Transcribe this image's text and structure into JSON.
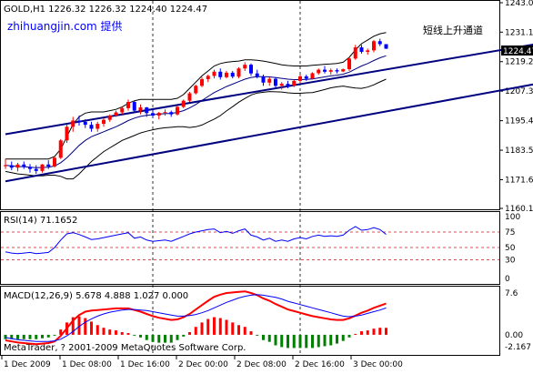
{
  "header": {
    "ohlc_label": "GOLD,H1  1226.32  1226.32  1224.40  1224.47",
    "watermark": "zhihuangjin.com 提供",
    "annotation": "短线上升通道",
    "current_price": "1224.47"
  },
  "colors": {
    "background": "#ffffff",
    "axes": "#000000",
    "bull_candle": "#ff0000",
    "bear_candle": "#0000ff",
    "channel": "#000080",
    "ma": "#000080",
    "bands": "#000000",
    "rsi": "#0000ff",
    "rsi_levels": "#ff0000",
    "macd_line": "#ff0000",
    "signal_line": "#0000ff",
    "hist_pos": "#ff0000",
    "hist_neg": "#008000",
    "watermark": "#0000ff",
    "price_box": "#000000"
  },
  "price_panel": {
    "ticks": [
      "1243.00",
      "1231.15",
      "1219.25",
      "1207.35",
      "1195.45",
      "1183.55",
      "1171.65",
      "1160.10"
    ]
  },
  "rsi_panel": {
    "label": "RSI(14) 71.1652",
    "ticks": [
      "100",
      "75",
      "50",
      "30",
      "0"
    ]
  },
  "macd_panel": {
    "label": "MACD(12,26,9) 5.678 4.888 1.027 0.000",
    "ticks": [
      "7.6",
      "0.00",
      "-2.167"
    ],
    "copyright": "MetaTrader, ? 2001-2009 MetaQuotes Software Corp."
  },
  "x_axis": {
    "labels": [
      "1 Dec 2009",
      "1 Dec 08:00",
      "1 Dec 16:00",
      "2 Dec 00:00",
      "2 Dec 08:00",
      "2 Dec 16:00",
      "3 Dec 00:00"
    ]
  },
  "chart_data": {
    "type": "candlestick",
    "title": "GOLD,H1",
    "x_unit": "hour",
    "x_start": "1 Dec 2009 00:00",
    "candles": [
      [
        1177.5,
        1180,
        1176,
        1177.5
      ],
      [
        1177.5,
        1179,
        1175.5,
        1176.5
      ],
      [
        1176.5,
        1178.5,
        1175,
        1177.8
      ],
      [
        1177.8,
        1179,
        1176,
        1176.8
      ],
      [
        1176.8,
        1178,
        1174.5,
        1176
      ],
      [
        1176,
        1177.5,
        1174,
        1175.2
      ],
      [
        1175.2,
        1178,
        1174.5,
        1177.8
      ],
      [
        1177.8,
        1179.5,
        1176,
        1177
      ],
      [
        1177,
        1181,
        1176.5,
        1180.5
      ],
      [
        1180.5,
        1188,
        1180,
        1187.5
      ],
      [
        1187.5,
        1194,
        1186.5,
        1193
      ],
      [
        1193,
        1197,
        1191,
        1195.5
      ],
      [
        1195.5,
        1197.5,
        1193.5,
        1195
      ],
      [
        1195,
        1196,
        1192.5,
        1193.8
      ],
      [
        1193.8,
        1195,
        1191,
        1192.2
      ],
      [
        1192.2,
        1195,
        1191,
        1194.2
      ],
      [
        1194.2,
        1196.5,
        1193,
        1195.8
      ],
      [
        1195.8,
        1198,
        1195,
        1197.5
      ],
      [
        1197.5,
        1199.5,
        1197,
        1198.8
      ],
      [
        1198.8,
        1201,
        1198,
        1200.5
      ],
      [
        1200.5,
        1204,
        1199.5,
        1203
      ],
      [
        1203,
        1203.5,
        1198.5,
        1199.5
      ],
      [
        1199.5,
        1202,
        1198,
        1200.8
      ],
      [
        1200.8,
        1201,
        1197,
        1198.5
      ],
      [
        1198.5,
        1200,
        1196.5,
        1197.5
      ],
      [
        1197.5,
        1199,
        1196,
        1198.6
      ],
      [
        1198.6,
        1200,
        1197.5,
        1198.9
      ],
      [
        1198.9,
        1199.5,
        1197,
        1198
      ],
      [
        1198,
        1201.5,
        1197.5,
        1201
      ],
      [
        1201,
        1204,
        1200.5,
        1203.5
      ],
      [
        1203.5,
        1207,
        1203,
        1206.5
      ],
      [
        1206.5,
        1210,
        1206,
        1209.5
      ],
      [
        1209.5,
        1213,
        1209,
        1212.2
      ],
      [
        1212.2,
        1214,
        1211,
        1213.5
      ],
      [
        1213.5,
        1216,
        1212.5,
        1215.2
      ],
      [
        1215.2,
        1216.5,
        1212,
        1213
      ],
      [
        1213,
        1215.5,
        1212.5,
        1214.8
      ],
      [
        1214.8,
        1215.5,
        1212.5,
        1213.2
      ],
      [
        1213.2,
        1217,
        1212.5,
        1216.5
      ],
      [
        1216.5,
        1219,
        1215.5,
        1218
      ],
      [
        1218,
        1218.5,
        1213.5,
        1214.5
      ],
      [
        1214.5,
        1216,
        1212.5,
        1213.3
      ],
      [
        1213.3,
        1214,
        1209.5,
        1210.8
      ],
      [
        1210.8,
        1213,
        1209.5,
        1212.3
      ],
      [
        1212.3,
        1213,
        1208.5,
        1209.5
      ],
      [
        1209.5,
        1211,
        1208,
        1210.3
      ],
      [
        1210.3,
        1211.5,
        1208.5,
        1209.6
      ],
      [
        1209.6,
        1212,
        1209,
        1211.5
      ],
      [
        1211.5,
        1214,
        1210.5,
        1213.3
      ],
      [
        1213.3,
        1214,
        1211.5,
        1212.4
      ],
      [
        1212.4,
        1215,
        1212,
        1214.6
      ],
      [
        1214.6,
        1216.5,
        1214,
        1216
      ],
      [
        1216,
        1217.5,
        1214.5,
        1215.2
      ],
      [
        1215.2,
        1216.5,
        1214,
        1215.8
      ],
      [
        1215.8,
        1216.5,
        1214.5,
        1215.3
      ],
      [
        1215.3,
        1216.5,
        1215,
        1216.2
      ],
      [
        1216.2,
        1221,
        1215.5,
        1220.5
      ],
      [
        1220.5,
        1226,
        1220,
        1225
      ],
      [
        1225,
        1226,
        1222.5,
        1223.2
      ],
      [
        1223.2,
        1224.5,
        1222,
        1223.8
      ],
      [
        1223.8,
        1228,
        1223,
        1227.5
      ],
      [
        1227.5,
        1228.5,
        1225.5,
        1226.3
      ],
      [
        1226.3,
        1226.3,
        1224.4,
        1224.47
      ]
    ],
    "channel": {
      "upper": [
        {
          "x": 0,
          "y": 1190
        },
        {
          "x": 126,
          "y": 1243
        }
      ],
      "lower": [
        {
          "x": 0,
          "y": 1171
        },
        {
          "x": 132,
          "y": 1231
        }
      ]
    },
    "ma": [
      1177.5,
      1177.2,
      1177,
      1176.9,
      1176.7,
      1176.5,
      1176.6,
      1176.7,
      1177.2,
      1178.5,
      1180.5,
      1183,
      1185.5,
      1187.5,
      1189,
      1190,
      1191,
      1192,
      1193,
      1194.2,
      1195.5,
      1196.5,
      1197.2,
      1197.6,
      1197.9,
      1198.1,
      1198.3,
      1198.4,
      1198.8,
      1199.5,
      1200.6,
      1202,
      1203.6,
      1205.2,
      1206.8,
      1208,
      1209.2,
      1210.2,
      1211.2,
      1212.2,
      1212.9,
      1213.2,
      1213.2,
      1213.1,
      1212.8,
      1212.5,
      1212.2,
      1212,
      1212,
      1212.1,
      1212.3,
      1212.7,
      1213.1,
      1213.5,
      1213.8,
      1214.2,
      1215,
      1216.3,
      1217.5,
      1218.5,
      1219.7,
      1220.8,
      1221.6
    ],
    "bb_upper": [
      1180,
      1180,
      1180,
      1180,
      1180,
      1180,
      1180,
      1180,
      1181,
      1184,
      1189,
      1194,
      1197,
      1198.5,
      1199,
      1199,
      1199,
      1199.5,
      1200,
      1201,
      1202.5,
      1203.5,
      1204,
      1204,
      1204,
      1204,
      1204,
      1204,
      1204.5,
      1206,
      1208.5,
      1211,
      1213.5,
      1215.5,
      1217.5,
      1218.5,
      1219,
      1219.3,
      1219.5,
      1220,
      1220,
      1219.8,
      1219.5,
      1219,
      1218.5,
      1218,
      1217.7,
      1217.5,
      1217.5,
      1217.5,
      1217.8,
      1218,
      1218.2,
      1218.3,
      1218.5,
      1219,
      1221,
      1224,
      1226.5,
      1228,
      1229.5,
      1230.5,
      1231
    ],
    "bb_lower": [
      1175,
      1174.5,
      1174,
      1173.8,
      1173.5,
      1173.2,
      1173.2,
      1173.5,
      1173.5,
      1173,
      1172,
      1172,
      1174,
      1176.5,
      1179,
      1181,
      1183,
      1184.5,
      1186,
      1187.5,
      1188.5,
      1189.5,
      1190.5,
      1191.2,
      1191.8,
      1192.3,
      1192.6,
      1192.8,
      1193,
      1193,
      1192.7,
      1193,
      1193.7,
      1194.9,
      1196.1,
      1197.5,
      1199.4,
      1201.1,
      1202.9,
      1204.4,
      1205.8,
      1206.6,
      1206.9,
      1207.2,
      1207.1,
      1207,
      1206.7,
      1206.5,
      1206.5,
      1206.7,
      1206.8,
      1207.4,
      1208,
      1208.7,
      1209.1,
      1209.4,
      1209,
      1208.6,
      1208.5,
      1209,
      1209.9,
      1211.1,
      1212.2
    ],
    "rsi": [
      43,
      41,
      40,
      41,
      42,
      40,
      41,
      42,
      50,
      62,
      72,
      74,
      71,
      67,
      63,
      64,
      66,
      68,
      70,
      72,
      74,
      65,
      67,
      62,
      60,
      61,
      62,
      60,
      64,
      68,
      72,
      75,
      77,
      79,
      80,
      74,
      76,
      73,
      77,
      80,
      70,
      67,
      62,
      65,
      60,
      62,
      60,
      64,
      66,
      64,
      68,
      70,
      68,
      69,
      68,
      70,
      78,
      84,
      78,
      79,
      82,
      79,
      71.17
    ],
    "macd": [
      -1,
      -1.2,
      -1.4,
      -1.5,
      -1.6,
      -1.7,
      -1.6,
      -1.5,
      -1.2,
      -0.2,
      1.2,
      2.6,
      3.6,
      4.2,
      4.4,
      4.5,
      4.6,
      4.7,
      4.8,
      4.8,
      4.8,
      4.5,
      4.2,
      3.8,
      3.4,
      3.1,
      2.9,
      2.7,
      2.8,
      3.2,
      3.8,
      4.6,
      5.4,
      6.2,
      6.9,
      7.3,
      7.6,
      7.7,
      7.8,
      7.9,
      7.6,
      7.2,
      6.6,
      6.2,
      5.6,
      5.1,
      4.6,
      4.3,
      4,
      3.7,
      3.4,
      3.2,
      3,
      2.8,
      2.7,
      2.7,
      3,
      3.5,
      4,
      4.4,
      4.9,
      5.3,
      5.68
    ],
    "signal": [
      -0.5,
      -0.7,
      -0.9,
      -1,
      -1.1,
      -1.2,
      -1.2,
      -1.2,
      -1.1,
      -0.8,
      -0.2,
      0.6,
      1.5,
      2.3,
      2.9,
      3.4,
      3.8,
      4.1,
      4.3,
      4.5,
      4.6,
      4.6,
      4.5,
      4.4,
      4.2,
      4,
      3.8,
      3.6,
      3.4,
      3.4,
      3.5,
      3.7,
      4,
      4.4,
      4.9,
      5.4,
      5.9,
      6.3,
      6.7,
      7,
      7.2,
      7.3,
      7.2,
      7,
      6.8,
      6.5,
      6.1,
      5.8,
      5.5,
      5.2,
      4.9,
      4.6,
      4.3,
      4,
      3.7,
      3.4,
      3.3,
      3.4,
      3.6,
      3.9,
      4.2,
      4.5,
      4.89
    ],
    "y_ranges": {
      "price": [
        1160.1,
        1243
      ],
      "rsi": [
        0,
        100
      ],
      "macd": [
        -2.167,
        7.6
      ]
    }
  }
}
